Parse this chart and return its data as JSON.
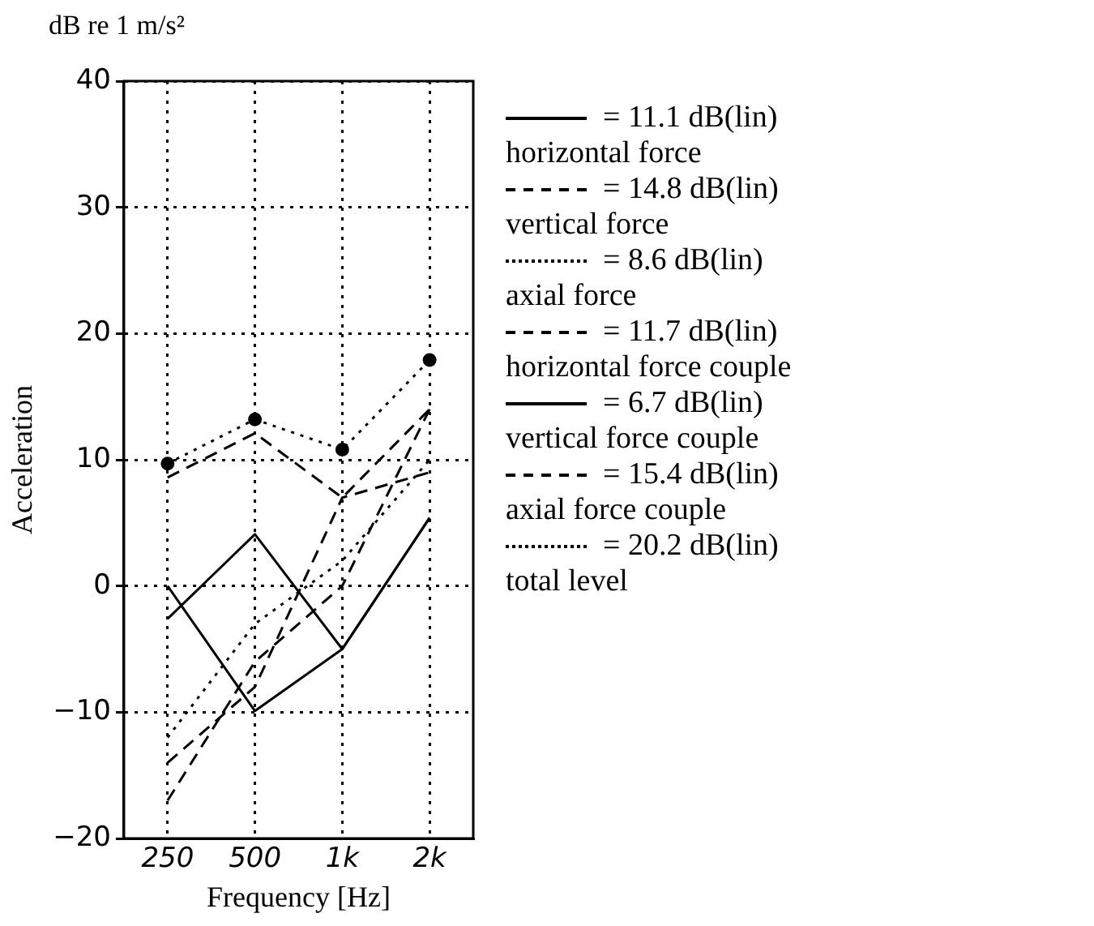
{
  "chart_data": {
    "type": "line",
    "xlabel": "Frequency [Hz]",
    "ylabel": "Acceleration",
    "categories": [
      "250",
      "500",
      "1k",
      "2k"
    ],
    "ylim": [
      -20,
      40
    ],
    "yticks": [
      -20,
      -10,
      0,
      10,
      20,
      30,
      40
    ],
    "grid": true,
    "legend": "right",
    "series": [
      {
        "name": "horizontal force",
        "color": "#000000",
        "line_style": "solid",
        "values": [
          -2.6,
          4.1,
          -5,
          5.4
        ]
      },
      {
        "name": "vertical force",
        "color": "#000000",
        "line_style": "dashed",
        "values": [
          8.6,
          12.1,
          7,
          14
        ]
      },
      {
        "name": "axial force",
        "color": "#000000",
        "line_style": "dotted",
        "values": [
          -12,
          -3,
          2,
          10
        ]
      },
      {
        "name": "horizontal force couple",
        "color": "#000000",
        "line_style": "dashed",
        "values": [
          -17,
          -6,
          0,
          14
        ]
      },
      {
        "name": "vertical force couple",
        "color": "#000000",
        "line_style": "solid",
        "values": [
          0,
          -9.9,
          -5,
          5.4
        ]
      },
      {
        "name": "axial force couple",
        "color": "#000000",
        "line_style": "dashed",
        "values": [
          -14,
          -8,
          7,
          9
        ]
      },
      {
        "name": "total level",
        "color": "#000000",
        "line_style": "dotted",
        "marker": "circle",
        "values": [
          9.7,
          13.2,
          10.8,
          17.9
        ]
      }
    ],
    "annotations": [
      "dB re 1 m/s²",
      "= 11.1 dB(lin)",
      "= 14.8 dB(lin)",
      "= 8.6 dB(lin)",
      "= 11.7 dB(lin)",
      "= 6.7 dB(lin)",
      "= 15.4 dB(lin)",
      "= 20.2 dB(lin)"
    ]
  }
}
